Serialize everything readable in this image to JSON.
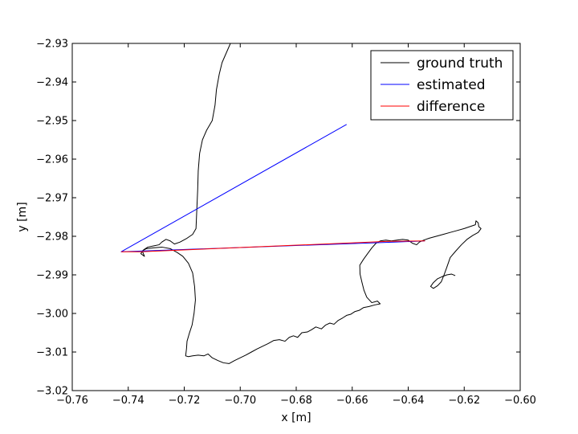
{
  "chart_data": {
    "type": "line",
    "title": "",
    "xlabel": "x [m]",
    "ylabel": "y [m]",
    "xlim": [
      -0.76,
      -0.6
    ],
    "ylim": [
      -3.02,
      -2.93
    ],
    "x_ticks": [
      -0.76,
      -0.74,
      -0.72,
      -0.7,
      -0.68,
      -0.66,
      -0.64,
      -0.62,
      -0.6
    ],
    "y_ticks": [
      -2.93,
      -2.94,
      -2.95,
      -2.96,
      -2.97,
      -2.98,
      -2.99,
      -3.0,
      -3.01,
      -3.02
    ],
    "x_tick_labels": [
      "−0.76",
      "−0.74",
      "−0.72",
      "−0.70",
      "−0.68",
      "−0.66",
      "−0.64",
      "−0.62",
      "−0.60"
    ],
    "y_tick_labels": [
      "−2.93",
      "−2.94",
      "−2.95",
      "−2.96",
      "−2.97",
      "−2.98",
      "−2.99",
      "−3.00",
      "−3.01",
      "−3.02"
    ],
    "grid": false,
    "legend_position": "top-right",
    "series": [
      {
        "name": "ground truth",
        "color": "#000000",
        "points": [
          [
            -0.7035,
            -2.93
          ],
          [
            -0.705,
            -2.9325
          ],
          [
            -0.7065,
            -2.935
          ],
          [
            -0.7075,
            -2.938
          ],
          [
            -0.7085,
            -2.942
          ],
          [
            -0.709,
            -2.946
          ],
          [
            -0.71,
            -2.95
          ],
          [
            -0.712,
            -2.9525
          ],
          [
            -0.7135,
            -2.955
          ],
          [
            -0.7145,
            -2.9585
          ],
          [
            -0.715,
            -2.963
          ],
          [
            -0.7152,
            -2.968
          ],
          [
            -0.7155,
            -2.973
          ],
          [
            -0.7158,
            -2.978
          ],
          [
            -0.717,
            -2.9795
          ],
          [
            -0.719,
            -2.9805
          ],
          [
            -0.7215,
            -2.9815
          ],
          [
            -0.7235,
            -2.982
          ],
          [
            -0.725,
            -2.9812
          ],
          [
            -0.7265,
            -2.9808
          ],
          [
            -0.728,
            -2.9815
          ],
          [
            -0.729,
            -2.9822
          ],
          [
            -0.731,
            -2.9825
          ],
          [
            -0.733,
            -2.9828
          ],
          [
            -0.7345,
            -2.9835
          ],
          [
            -0.7355,
            -2.9845
          ],
          [
            -0.7342,
            -2.9852
          ],
          [
            -0.735,
            -2.9838
          ],
          [
            -0.7335,
            -2.9832
          ],
          [
            -0.731,
            -2.983
          ],
          [
            -0.728,
            -2.9828
          ],
          [
            -0.725,
            -2.9832
          ],
          [
            -0.7225,
            -2.9842
          ],
          [
            -0.7205,
            -2.9852
          ],
          [
            -0.7185,
            -2.987
          ],
          [
            -0.717,
            -2.9895
          ],
          [
            -0.7163,
            -2.993
          ],
          [
            -0.716,
            -2.9965
          ],
          [
            -0.7165,
            -3.0
          ],
          [
            -0.7172,
            -3.003
          ],
          [
            -0.7182,
            -3.0052
          ],
          [
            -0.719,
            -3.0072
          ],
          [
            -0.7192,
            -3.0092
          ],
          [
            -0.7195,
            -3.011
          ],
          [
            -0.7185,
            -3.0112
          ],
          [
            -0.717,
            -3.011
          ],
          [
            -0.715,
            -3.0108
          ],
          [
            -0.713,
            -3.011
          ],
          [
            -0.7115,
            -3.0105
          ],
          [
            -0.71,
            -3.0115
          ],
          [
            -0.708,
            -3.0122
          ],
          [
            -0.706,
            -3.0128
          ],
          [
            -0.704,
            -3.013
          ],
          [
            -0.702,
            -3.0122
          ],
          [
            -0.7,
            -3.0115
          ],
          [
            -0.698,
            -3.0108
          ],
          [
            -0.696,
            -3.01
          ],
          [
            -0.694,
            -3.0092
          ],
          [
            -0.692,
            -3.0085
          ],
          [
            -0.69,
            -3.0078
          ],
          [
            -0.688,
            -3.007
          ],
          [
            -0.686,
            -3.0068
          ],
          [
            -0.684,
            -3.0072
          ],
          [
            -0.6825,
            -3.0062
          ],
          [
            -0.681,
            -3.0058
          ],
          [
            -0.6795,
            -3.0062
          ],
          [
            -0.678,
            -3.005
          ],
          [
            -0.676,
            -3.0048
          ],
          [
            -0.6745,
            -3.0042
          ],
          [
            -0.673,
            -3.0035
          ],
          [
            -0.671,
            -3.004
          ],
          [
            -0.6695,
            -3.003
          ],
          [
            -0.668,
            -3.0025
          ],
          [
            -0.6665,
            -3.0028
          ],
          [
            -0.665,
            -3.0018
          ],
          [
            -0.6635,
            -3.0012
          ],
          [
            -0.662,
            -3.0005
          ],
          [
            -0.6605,
            -3.0002
          ],
          [
            -0.659,
            -2.9995
          ],
          [
            -0.6575,
            -2.9992
          ],
          [
            -0.656,
            -2.9985
          ],
          [
            -0.654,
            -2.9982
          ],
          [
            -0.652,
            -2.9978
          ],
          [
            -0.65,
            -2.9975
          ],
          [
            -0.651,
            -2.9968
          ],
          [
            -0.653,
            -2.9972
          ],
          [
            -0.6548,
            -2.9958
          ],
          [
            -0.6558,
            -2.994
          ],
          [
            -0.6565,
            -2.992
          ],
          [
            -0.6572,
            -2.9898
          ],
          [
            -0.6573,
            -2.9875
          ],
          [
            -0.656,
            -2.986
          ],
          [
            -0.6545,
            -2.9845
          ],
          [
            -0.653,
            -2.983
          ],
          [
            -0.6515,
            -2.9818
          ],
          [
            -0.65,
            -2.9812
          ],
          [
            -0.648,
            -2.981
          ],
          [
            -0.646,
            -2.9812
          ],
          [
            -0.644,
            -2.981
          ],
          [
            -0.642,
            -2.9808
          ],
          [
            -0.64,
            -2.981
          ],
          [
            -0.6385,
            -2.9818
          ],
          [
            -0.637,
            -2.9822
          ],
          [
            -0.636,
            -2.9815
          ],
          [
            -0.6345,
            -2.981
          ],
          [
            -0.6325,
            -2.9805
          ],
          [
            -0.63,
            -2.98
          ],
          [
            -0.6275,
            -2.9795
          ],
          [
            -0.625,
            -2.979
          ],
          [
            -0.6225,
            -2.9785
          ],
          [
            -0.62,
            -2.978
          ],
          [
            -0.618,
            -2.9775
          ],
          [
            -0.616,
            -2.977
          ],
          [
            -0.6158,
            -2.976
          ],
          [
            -0.615,
            -2.9765
          ],
          [
            -0.6148,
            -2.9775
          ],
          [
            -0.614,
            -2.978
          ],
          [
            -0.615,
            -2.979
          ],
          [
            -0.617,
            -2.9798
          ],
          [
            -0.619,
            -2.9808
          ],
          [
            -0.621,
            -2.9822
          ],
          [
            -0.623,
            -2.9838
          ],
          [
            -0.625,
            -2.9855
          ],
          [
            -0.6262,
            -2.988
          ],
          [
            -0.6272,
            -2.99
          ],
          [
            -0.6282,
            -2.9918
          ],
          [
            -0.6295,
            -2.9928
          ],
          [
            -0.631,
            -2.9935
          ],
          [
            -0.632,
            -2.993
          ],
          [
            -0.631,
            -2.992
          ],
          [
            -0.6295,
            -2.991
          ],
          [
            -0.628,
            -2.9905
          ],
          [
            -0.6262,
            -2.99
          ],
          [
            -0.6245,
            -2.9898
          ],
          [
            -0.6232,
            -2.9902
          ]
        ]
      },
      {
        "name": "estimated",
        "color": "#0000ff",
        "points": [
          [
            -0.662,
            -2.951
          ],
          [
            -0.7425,
            -2.984
          ],
          [
            -0.645,
            -2.9815
          ],
          [
            -0.634,
            -2.9812
          ]
        ]
      },
      {
        "name": "difference",
        "color": "#ff0000",
        "points": [
          [
            -0.7425,
            -2.984
          ],
          [
            -0.7355,
            -2.984
          ],
          [
            -0.647,
            -2.9813
          ],
          [
            -0.634,
            -2.9812
          ]
        ]
      }
    ]
  }
}
